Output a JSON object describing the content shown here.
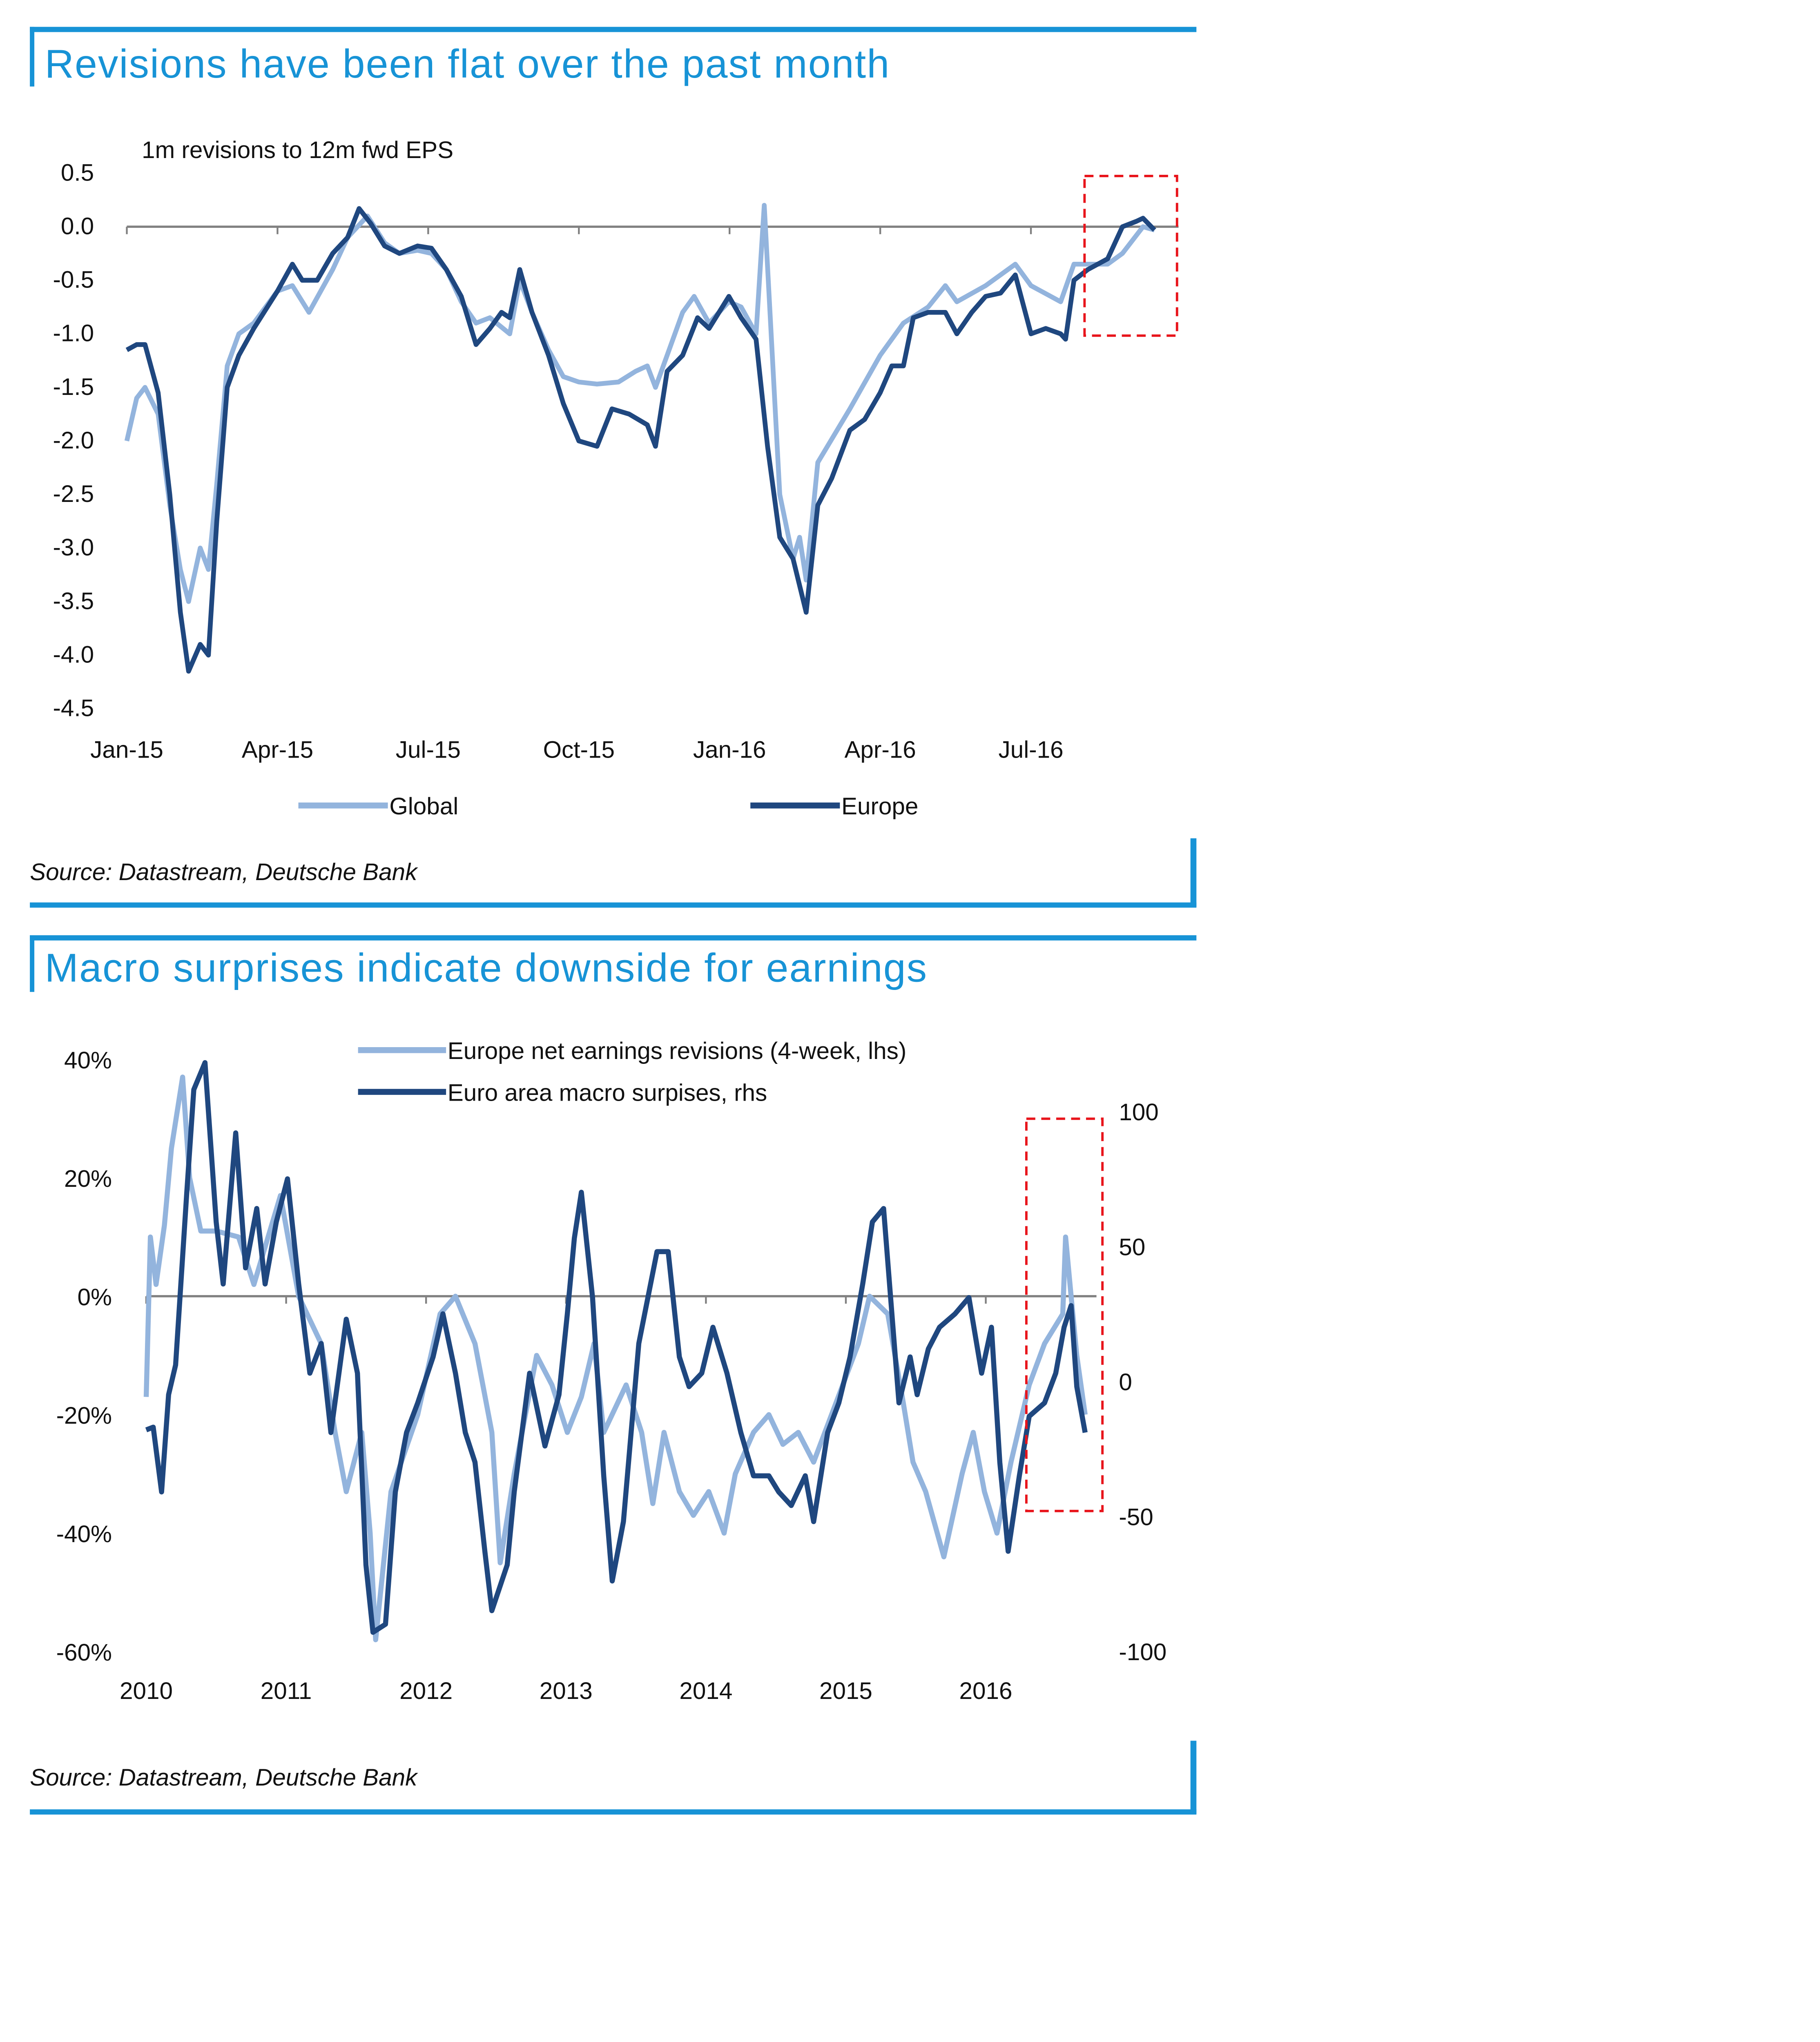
{
  "colors": {
    "accent": "#1793d6",
    "light_series": "#93b4dd",
    "dark_series": "#1f477f",
    "highlight": "#e8141b",
    "axis": "#808080"
  },
  "chart_data": [
    {
      "type": "line",
      "title": "Revisions have been flat over the past month",
      "subtitle": "1m revisions to 12m fwd EPS",
      "source": "Source: Datastream, Deutsche Bank",
      "xlabel": "",
      "ylabel": "",
      "ylim": [
        -4.5,
        0.5
      ],
      "yticks": [
        "0.5",
        "0.0",
        "-0.5",
        "-1.0",
        "-1.5",
        "-2.0",
        "-2.5",
        "-3.0",
        "-3.5",
        "-4.0",
        "-4.5"
      ],
      "xticks": [
        "Jan-15",
        "Apr-15",
        "Jul-15",
        "Oct-15",
        "Jan-16",
        "Apr-16",
        "Jul-16"
      ],
      "grid": false,
      "legend": "bottom",
      "highlight_box": "latest month (Aug-16 to Sep-16), dashed red",
      "series": [
        {
          "name": "Global",
          "points": [
            [
              "2015-01-01",
              -2.0
            ],
            [
              "2015-01-07",
              -1.6
            ],
            [
              "2015-01-12",
              -1.5
            ],
            [
              "2015-01-20",
              -1.75
            ],
            [
              "2015-01-27",
              -2.6
            ],
            [
              "2015-02-03",
              -3.2
            ],
            [
              "2015-02-08",
              -3.5
            ],
            [
              "2015-02-15",
              -3.0
            ],
            [
              "2015-02-20",
              -3.2
            ],
            [
              "2015-02-25",
              -2.4
            ],
            [
              "2015-03-01",
              -1.3
            ],
            [
              "2015-03-08",
              -1.0
            ],
            [
              "2015-03-17",
              -0.9
            ],
            [
              "2015-04-01",
              -0.6
            ],
            [
              "2015-04-10",
              -0.55
            ],
            [
              "2015-04-20",
              -0.8
            ],
            [
              "2015-05-04",
              -0.4
            ],
            [
              "2015-05-13",
              -0.1
            ],
            [
              "2015-05-25",
              0.1
            ],
            [
              "2015-06-05",
              -0.15
            ],
            [
              "2015-06-14",
              -0.25
            ],
            [
              "2015-06-25",
              -0.22
            ],
            [
              "2015-07-03",
              -0.25
            ],
            [
              "2015-07-12",
              -0.4
            ],
            [
              "2015-07-21",
              -0.7
            ],
            [
              "2015-07-30",
              -0.9
            ],
            [
              "2015-08-08",
              -0.85
            ],
            [
              "2015-08-20",
              -1.0
            ],
            [
              "2015-08-26",
              -0.5
            ],
            [
              "2015-09-03",
              -0.8
            ],
            [
              "2015-09-13",
              -1.15
            ],
            [
              "2015-09-22",
              -1.4
            ],
            [
              "2015-10-01",
              -1.45
            ],
            [
              "2015-10-12",
              -1.47
            ],
            [
              "2015-10-25",
              -1.45
            ],
            [
              "2015-11-05",
              -1.35
            ],
            [
              "2015-11-12",
              -1.3
            ],
            [
              "2015-11-17",
              -1.5
            ],
            [
              "2015-11-24",
              -1.2
            ],
            [
              "2015-12-03",
              -0.8
            ],
            [
              "2015-12-10",
              -0.65
            ],
            [
              "2015-12-19",
              -0.9
            ],
            [
              "2015-12-31",
              -0.7
            ],
            [
              "2016-01-08",
              -0.75
            ],
            [
              "2016-01-17",
              -1.0
            ],
            [
              "2016-01-22",
              0.2
            ],
            [
              "2016-02-01",
              -2.5
            ],
            [
              "2016-02-09",
              -3.1
            ],
            [
              "2016-02-13",
              -2.9
            ],
            [
              "2016-02-17",
              -3.3
            ],
            [
              "2016-02-24",
              -2.2
            ],
            [
              "2016-03-13",
              -1.7
            ],
            [
              "2016-04-01",
              -1.2
            ],
            [
              "2016-04-15",
              -0.9
            ],
            [
              "2016-04-30",
              -0.75
            ],
            [
              "2016-05-10",
              -0.55
            ],
            [
              "2016-05-17",
              -0.7
            ],
            [
              "2016-06-04",
              -0.55
            ],
            [
              "2016-06-22",
              -0.35
            ],
            [
              "2016-07-01",
              -0.55
            ],
            [
              "2016-07-19",
              -0.7
            ],
            [
              "2016-07-27",
              -0.35
            ],
            [
              "2016-08-17",
              -0.35
            ],
            [
              "2016-08-26",
              -0.25
            ],
            [
              "2016-09-08",
              0.0
            ],
            [
              "2016-09-15",
              -0.03
            ]
          ]
        },
        {
          "name": "Europe",
          "points": [
            [
              "2015-01-01",
              -1.15
            ],
            [
              "2015-01-07",
              -1.1
            ],
            [
              "2015-01-12",
              -1.1
            ],
            [
              "2015-01-20",
              -1.55
            ],
            [
              "2015-01-27",
              -2.5
            ],
            [
              "2015-02-03",
              -3.6
            ],
            [
              "2015-02-08",
              -4.15
            ],
            [
              "2015-02-15",
              -3.9
            ],
            [
              "2015-02-20",
              -4.0
            ],
            [
              "2015-02-25",
              -2.75
            ],
            [
              "2015-03-01",
              -1.5
            ],
            [
              "2015-03-08",
              -1.2
            ],
            [
              "2015-03-17",
              -0.95
            ],
            [
              "2015-04-01",
              -0.6
            ],
            [
              "2015-04-10",
              -0.35
            ],
            [
              "2015-04-16",
              -0.5
            ],
            [
              "2015-04-25",
              -0.5
            ],
            [
              "2015-05-04",
              -0.25
            ],
            [
              "2015-05-13",
              -0.1
            ],
            [
              "2015-05-20",
              0.17
            ],
            [
              "2015-05-27",
              0.03
            ],
            [
              "2015-06-05",
              -0.18
            ],
            [
              "2015-06-14",
              -0.25
            ],
            [
              "2015-06-25",
              -0.18
            ],
            [
              "2015-07-03",
              -0.2
            ],
            [
              "2015-07-12",
              -0.4
            ],
            [
              "2015-07-21",
              -0.65
            ],
            [
              "2015-07-30",
              -1.1
            ],
            [
              "2015-08-08",
              -0.95
            ],
            [
              "2015-08-15",
              -0.8
            ],
            [
              "2015-08-20",
              -0.85
            ],
            [
              "2015-08-26",
              -0.4
            ],
            [
              "2015-09-03",
              -0.8
            ],
            [
              "2015-09-13",
              -1.2
            ],
            [
              "2015-09-22",
              -1.65
            ],
            [
              "2015-10-01",
              -2.0
            ],
            [
              "2015-10-12",
              -2.05
            ],
            [
              "2015-10-21",
              -1.7
            ],
            [
              "2015-11-01",
              -1.75
            ],
            [
              "2015-11-12",
              -1.85
            ],
            [
              "2015-11-17",
              -2.05
            ],
            [
              "2015-11-24",
              -1.35
            ],
            [
              "2015-12-03",
              -1.2
            ],
            [
              "2015-12-12",
              -0.85
            ],
            [
              "2015-12-19",
              -0.95
            ],
            [
              "2015-12-31",
              -0.65
            ],
            [
              "2016-01-08",
              -0.85
            ],
            [
              "2016-01-17",
              -1.05
            ],
            [
              "2016-01-24",
              -2.05
            ],
            [
              "2016-02-01",
              -2.9
            ],
            [
              "2016-02-09",
              -3.1
            ],
            [
              "2016-02-17",
              -3.6
            ],
            [
              "2016-02-24",
              -2.6
            ],
            [
              "2016-03-02",
              -2.35
            ],
            [
              "2016-03-13",
              -1.9
            ],
            [
              "2016-03-22",
              -1.8
            ],
            [
              "2016-04-01",
              -1.55
            ],
            [
              "2016-04-08",
              -1.3
            ],
            [
              "2016-04-15",
              -1.3
            ],
            [
              "2016-04-21",
              -0.85
            ],
            [
              "2016-04-30",
              -0.8
            ],
            [
              "2016-05-10",
              -0.8
            ],
            [
              "2016-05-17",
              -1.0
            ],
            [
              "2016-05-26",
              -0.8
            ],
            [
              "2016-06-04",
              -0.65
            ],
            [
              "2016-06-13",
              -0.62
            ],
            [
              "2016-06-22",
              -0.45
            ],
            [
              "2016-07-01",
              -1.0
            ],
            [
              "2016-07-10",
              -0.95
            ],
            [
              "2016-07-19",
              -1.0
            ],
            [
              "2016-07-22",
              -1.05
            ],
            [
              "2016-07-27",
              -0.5
            ],
            [
              "2016-08-05",
              -0.4
            ],
            [
              "2016-08-17",
              -0.3
            ],
            [
              "2016-08-26",
              0.0
            ],
            [
              "2016-09-04",
              0.05
            ],
            [
              "2016-09-08",
              0.08
            ],
            [
              "2016-09-15",
              -0.03
            ]
          ]
        }
      ]
    },
    {
      "type": "line",
      "title": "Macro surprises indicate downside for earnings",
      "source": "Source: Datastream, Deutsche Bank",
      "xlabel": "",
      "ylabel": "",
      "ylim_left": [
        -60,
        40
      ],
      "ylim_right": [
        -100,
        100
      ],
      "yticks_left": [
        "40%",
        "20%",
        "0%",
        "-20%",
        "-40%",
        "-60%"
      ],
      "yticks_right": [
        "100",
        "50",
        "0",
        "-50",
        "-100"
      ],
      "xticks": [
        "2010",
        "2011",
        "2012",
        "2013",
        "2014",
        "2015",
        "2016"
      ],
      "grid": false,
      "legend": "top",
      "highlight_box": "2016, dashed red",
      "series": [
        {
          "name": "Europe net earnings revisions (4-week, lhs)",
          "axis": "left",
          "x": [
            2010.0,
            2010.03,
            2010.07,
            2010.13,
            2010.18,
            2010.26,
            2010.31,
            2010.39,
            2010.5,
            2010.66,
            2010.77,
            2010.96,
            2011.09,
            2011.25,
            2011.35,
            2011.43,
            2011.54,
            2011.6,
            2011.64,
            2011.75,
            2011.94,
            2012.1,
            2012.21,
            2012.35,
            2012.47,
            2012.53,
            2012.63,
            2012.71,
            2012.79,
            2012.9,
            2013.01,
            2013.11,
            2013.2,
            2013.27,
            2013.43,
            2013.54,
            2013.62,
            2013.7,
            2013.81,
            2013.91,
            2014.02,
            2014.13,
            2014.21,
            2014.34,
            2014.45,
            2014.55,
            2014.66,
            2014.77,
            2014.93,
            2015.09,
            2015.17,
            2015.3,
            2015.41,
            2015.48,
            2015.57,
            2015.7,
            2015.83,
            2015.91,
            2015.99,
            2016.08,
            2016.18,
            2016.31,
            2016.42,
            2016.55,
            2016.57,
            2016.61,
            2016.65,
            2016.71
          ],
          "values": [
            -17,
            10,
            2,
            12,
            25,
            37,
            20,
            11,
            11,
            10,
            2,
            17,
            0,
            -8,
            -23,
            -33,
            -23,
            -40,
            -58,
            -33,
            -20,
            -3,
            0,
            -8,
            -23,
            -45,
            -30,
            -20,
            -10,
            -15,
            -23,
            -17,
            -8,
            -23,
            -15,
            -23,
            -35,
            -23,
            -33,
            -37,
            -33,
            -40,
            -30,
            -23,
            -20,
            -25,
            -23,
            -28,
            -18,
            -8,
            0,
            -3,
            -18,
            -28,
            -33,
            -44,
            -30,
            -23,
            -33,
            -40,
            -28,
            -15,
            -8,
            -3,
            10,
            0,
            -10,
            -20
          ]
        },
        {
          "name": "Euro area macro surpises, rhs",
          "axis": "right",
          "x": [
            2010.0,
            2010.05,
            2010.11,
            2010.16,
            2010.21,
            2010.29,
            2010.34,
            2010.42,
            2010.5,
            2010.55,
            2010.64,
            2010.71,
            2010.79,
            2010.85,
            2010.93,
            2011.01,
            2011.09,
            2011.17,
            2011.25,
            2011.32,
            2011.43,
            2011.51,
            2011.57,
            2011.62,
            2011.71,
            2011.78,
            2011.86,
            2011.94,
            2012.05,
            2012.12,
            2012.21,
            2012.28,
            2012.35,
            2012.42,
            2012.47,
            2012.58,
            2012.63,
            2012.74,
            2012.85,
            2012.95,
            2013.01,
            2013.06,
            2013.11,
            2013.19,
            2013.27,
            2013.33,
            2013.41,
            2013.52,
            2013.65,
            2013.73,
            2013.81,
            2013.88,
            2013.97,
            2014.05,
            2014.15,
            2014.25,
            2014.34,
            2014.45,
            2014.52,
            2014.61,
            2014.71,
            2014.77,
            2014.87,
            2014.95,
            2015.03,
            2015.12,
            2015.19,
            2015.27,
            2015.32,
            2015.38,
            2015.46,
            2015.51,
            2015.59,
            2015.67,
            2015.78,
            2015.88,
            2015.97,
            2016.04,
            2016.1,
            2016.16,
            2016.24,
            2016.31,
            2016.42,
            2016.5,
            2016.56,
            2016.61,
            2016.65,
            2016.71
          ],
          "values": [
            -18,
            -17,
            -41,
            -5,
            6,
            70,
            108,
            118,
            59,
            36,
            92,
            42,
            64,
            36,
            59,
            75,
            36,
            3,
            14,
            -19,
            23,
            3,
            -68,
            -93,
            -90,
            -41,
            -19,
            -8,
            9,
            25,
            3,
            -19,
            -30,
            -63,
            -85,
            -68,
            -41,
            3,
            -24,
            -5,
            25,
            53,
            70,
            31,
            -35,
            -74,
            -52,
            14,
            48,
            48,
            9,
            -2,
            3,
            20,
            3,
            -19,
            -35,
            -35,
            -41,
            -46,
            -35,
            -52,
            -19,
            -8,
            9,
            36,
            59,
            64,
            31,
            -8,
            9,
            -5,
            12,
            20,
            25,
            31,
            3,
            20,
            -30,
            -63,
            -35,
            -13,
            -8,
            3,
            20,
            28,
            -2,
            -19
          ]
        }
      ]
    }
  ]
}
